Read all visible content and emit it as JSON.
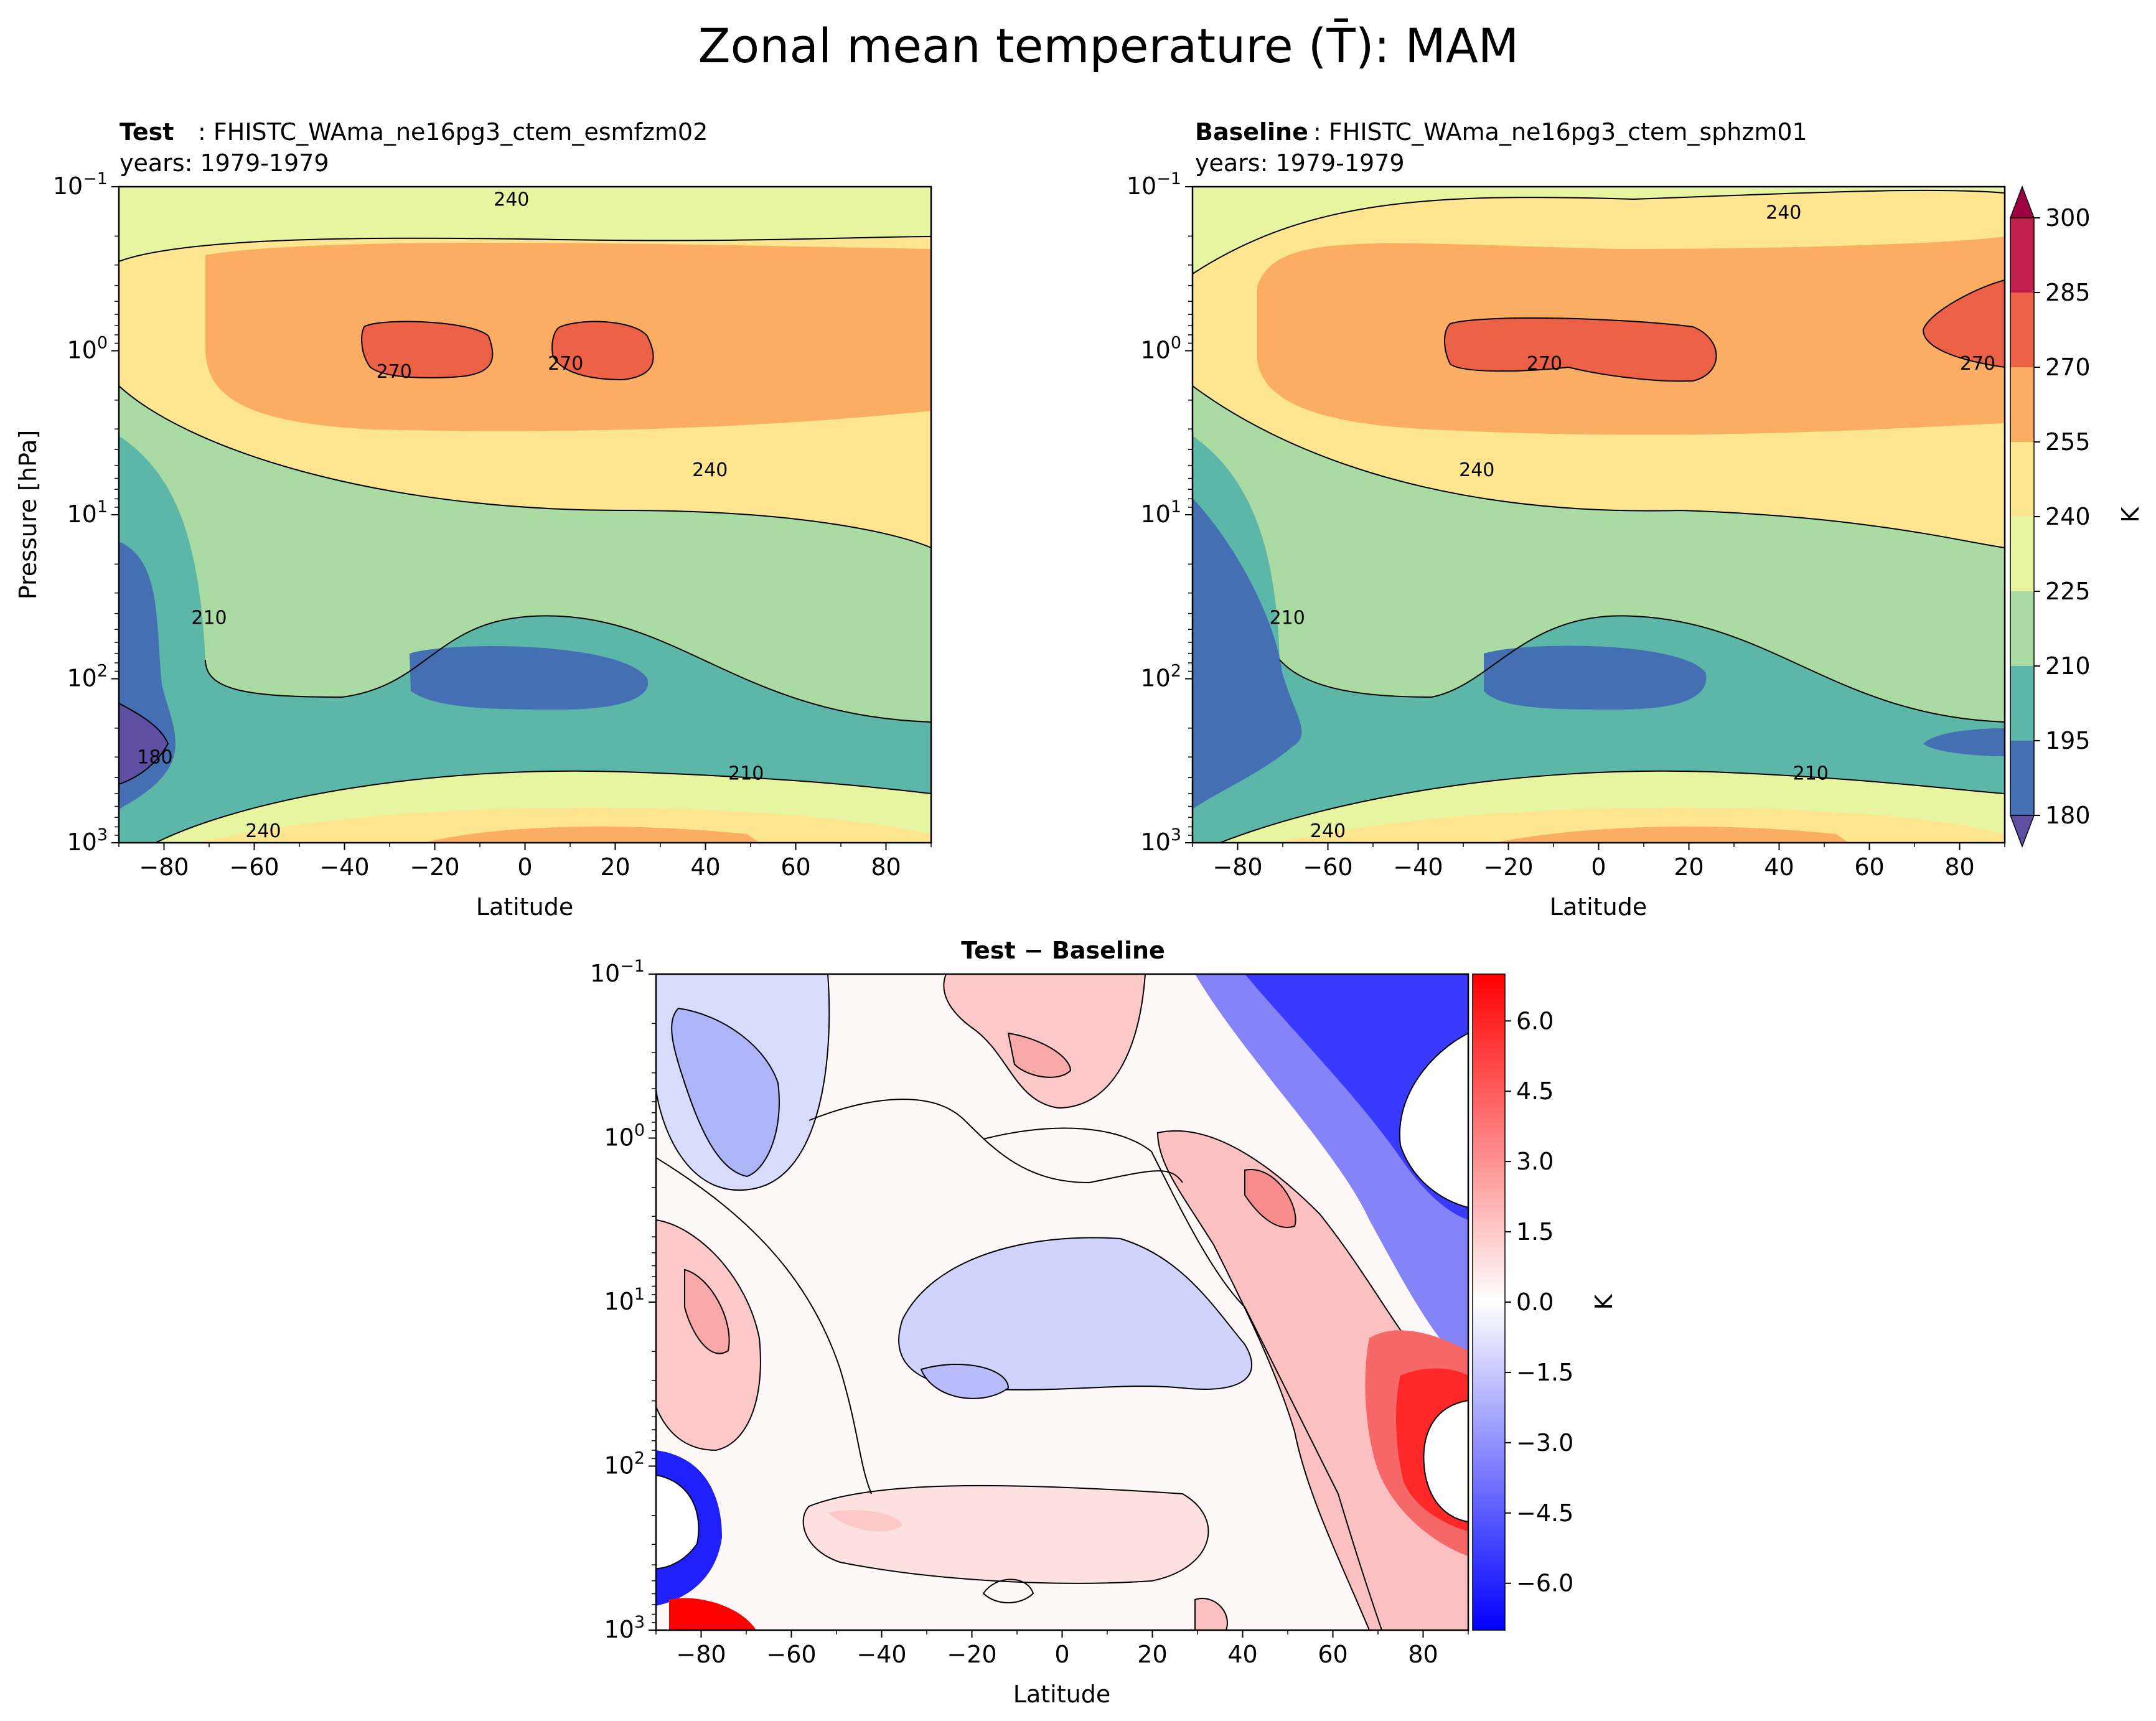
{
  "figure": {
    "title": "Zonal mean temperature (T̄): MAM"
  },
  "chart_data": [
    {
      "id": "test",
      "type": "heatmap",
      "title_bold": "Test",
      "title_rest": ": FHISTC_WAma_ne16pg3_ctem_esmfzm02",
      "subtitle": "years: 1979-1979",
      "xlabel": "Latitude",
      "ylabel": "Pressure [hPa]",
      "xlim": [
        -90,
        90
      ],
      "ylim_log10": [
        3,
        -1
      ],
      "xticks": [
        -80,
        -60,
        -40,
        -20,
        0,
        20,
        40,
        60,
        80
      ],
      "yticks": [
        {
          "exp": "−1",
          "p": -1
        },
        {
          "exp": "0",
          "p": 0
        },
        {
          "exp": "1",
          "p": 1
        },
        {
          "exp": "2",
          "p": 2
        },
        {
          "exp": "3",
          "p": 3
        }
      ],
      "contour_labels": [
        {
          "text": "240",
          "lat": -3,
          "p": -0.9
        },
        {
          "text": "270",
          "lat": 9,
          "p": 0.1
        },
        {
          "text": "270",
          "lat": -29,
          "p": 0.15
        },
        {
          "text": "240",
          "lat": 41,
          "p": 0.75
        },
        {
          "text": "210",
          "lat": -70,
          "p": 1.65
        },
        {
          "text": "180",
          "lat": -82,
          "p": 2.5
        },
        {
          "text": "210",
          "lat": 49,
          "p": 2.6
        },
        {
          "text": "240",
          "lat": -58,
          "p": 2.95
        }
      ]
    },
    {
      "id": "base",
      "type": "heatmap",
      "title_bold": "Baseline",
      "title_rest": ": FHISTC_WAma_ne16pg3_ctem_sphzm01",
      "subtitle": "years: 1979-1979",
      "xlabel": "Latitude",
      "xlim": [
        -90,
        90
      ],
      "ylim_log10": [
        3,
        -1
      ],
      "xticks": [
        -80,
        -60,
        -40,
        -20,
        0,
        20,
        40,
        60,
        80
      ],
      "yticks": [
        {
          "exp": "−1",
          "p": -1
        },
        {
          "exp": "0",
          "p": 0
        },
        {
          "exp": "1",
          "p": 1
        },
        {
          "exp": "2",
          "p": 2
        },
        {
          "exp": "3",
          "p": 3
        }
      ],
      "contour_labels": [
        {
          "text": "240",
          "lat": 41,
          "p": -0.82
        },
        {
          "text": "270",
          "lat": -12,
          "p": 0.1
        },
        {
          "text": "270",
          "lat": 84,
          "p": 0.1
        },
        {
          "text": "240",
          "lat": -27,
          "p": 0.75
        },
        {
          "text": "210",
          "lat": -69,
          "p": 1.65
        },
        {
          "text": "210",
          "lat": 47,
          "p": 2.6
        },
        {
          "text": "240",
          "lat": -60,
          "p": 2.95
        }
      ],
      "colorbar": {
        "label": "K",
        "levels": [
          180,
          195,
          210,
          225,
          240,
          255,
          270,
          285,
          300
        ],
        "colors": [
          "#4470b3",
          "#5db7a9",
          "#a9dba3",
          "#e8f5a0",
          "#fee590",
          "#fbad64",
          "#ec6145",
          "#c21e4c"
        ],
        "extend_low": "#5e4fa2",
        "extend_high": "#9e0142"
      }
    },
    {
      "id": "diff",
      "type": "heatmap",
      "title": "Test − Baseline",
      "xlabel": "Latitude",
      "xlim": [
        -90,
        90
      ],
      "ylim_log10": [
        3,
        -1
      ],
      "xticks": [
        -80,
        -60,
        -40,
        -20,
        0,
        20,
        40,
        60,
        80
      ],
      "yticks": [
        {
          "exp": "−1",
          "p": -1
        },
        {
          "exp": "0",
          "p": 0
        },
        {
          "exp": "1",
          "p": 1
        },
        {
          "exp": "2",
          "p": 2
        },
        {
          "exp": "3",
          "p": 3
        }
      ],
      "colorbar": {
        "label": "K",
        "vmin": -7,
        "vmax": 7,
        "ticks": [
          "6.0",
          "4.5",
          "3.0",
          "1.5",
          "0.0",
          "−1.5",
          "−3.0",
          "−4.5",
          "−6.0"
        ],
        "tick_values": [
          6,
          4.5,
          3,
          1.5,
          0,
          -1.5,
          -3,
          -4.5,
          -6
        ],
        "color_low": "#0000ff",
        "color_mid": "#ffffff",
        "color_high": "#ff0000"
      }
    }
  ]
}
